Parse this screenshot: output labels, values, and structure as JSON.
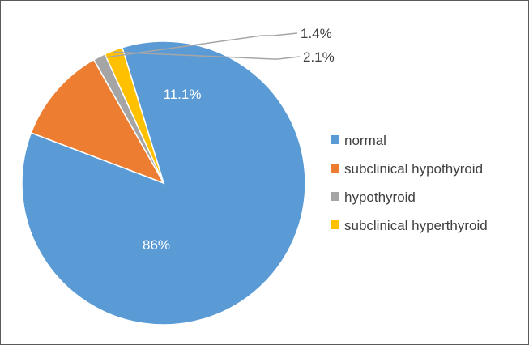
{
  "chart_data": {
    "type": "pie",
    "title": "",
    "legend_position": "right",
    "start_angle_deg": -17,
    "direction": "clockwise",
    "categories": [
      "normal",
      "subclinical hypothyroid",
      "hypothyroid",
      "subclinical hyperthyroid"
    ],
    "values": [
      86,
      11.1,
      1.4,
      2.1
    ],
    "labels": [
      "86%",
      "11.1%",
      "1.4%",
      "2.1%"
    ],
    "colors": [
      "#5b9bd5",
      "#ed7d31",
      "#a5a5a5",
      "#ffc000"
    ],
    "label_placement": [
      "inside",
      "inside",
      "outside-leader",
      "outside-leader"
    ]
  }
}
